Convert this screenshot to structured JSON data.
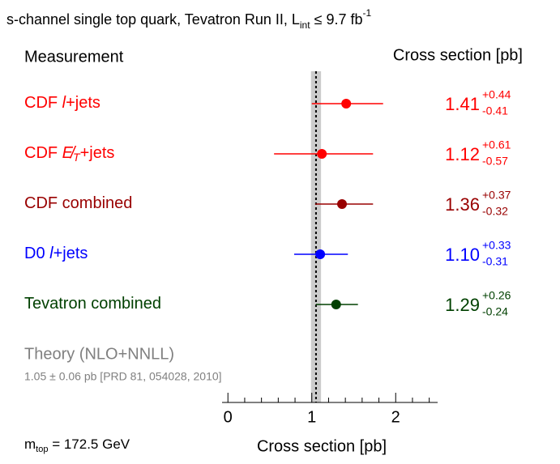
{
  "chart_data": {
    "type": "forest",
    "title": {
      "text": "s-channel single top quark, Tevatron Run II, L",
      "sub": "int",
      "rest": " ≤ 9.7 fb",
      "sup": "-1"
    },
    "header_left": "Measurement",
    "header_right": "Cross section [pb]",
    "xlabel": "Cross section [pb]",
    "annotation": {
      "text": "m",
      "sub": "top",
      "rest": " = 172.5 GeV"
    },
    "rows": [
      {
        "label": [
          "CDF ",
          "l",
          "+jets"
        ],
        "color": "#ff0000",
        "value": 1.41,
        "err_up": 0.44,
        "err_down": -0.41,
        "value_labels": [
          "1.41",
          "+0.44",
          "-0.41"
        ]
      },
      {
        "label": [
          "CDF ",
          "E̸",
          "T",
          "+jets"
        ],
        "color": "#ff0000",
        "value": 1.12,
        "err_up": 0.61,
        "err_down": -0.57,
        "value_labels": [
          "1.12",
          "+0.61",
          "-0.57"
        ]
      },
      {
        "label": [
          "CDF combined"
        ],
        "color": "#990000",
        "value": 1.36,
        "err_up": 0.37,
        "err_down": -0.32,
        "value_labels": [
          "1.36",
          "+0.37",
          "-0.32"
        ]
      },
      {
        "label": [
          "D0 ",
          "l",
          "+jets"
        ],
        "color": "#0000ff",
        "value": 1.1,
        "err_up": 0.33,
        "err_down": -0.31,
        "value_labels": [
          "1.10",
          "+0.33",
          "-0.31"
        ]
      },
      {
        "label": [
          "Tevatron combined"
        ],
        "color": "#004000",
        "value": 1.29,
        "err_up": 0.26,
        "err_down": -0.24,
        "value_labels": [
          "1.29",
          "+0.26",
          "-0.24"
        ]
      }
    ],
    "theory": {
      "label": "Theory (NLO+NNLL)",
      "note": "1.05 ± 0.06 pb [PRD 81, 054028, 2010]",
      "value": 1.05,
      "error": 0.06,
      "color": "#808080",
      "band_color": "#cccccc"
    },
    "xlim": [
      -0.07,
      2.5
    ],
    "xticks": [
      0,
      1,
      2
    ],
    "xminorticks": [
      0.2,
      0.4,
      0.6,
      0.8,
      1.2,
      1.4,
      1.6,
      1.8,
      2.2,
      2.4
    ]
  }
}
